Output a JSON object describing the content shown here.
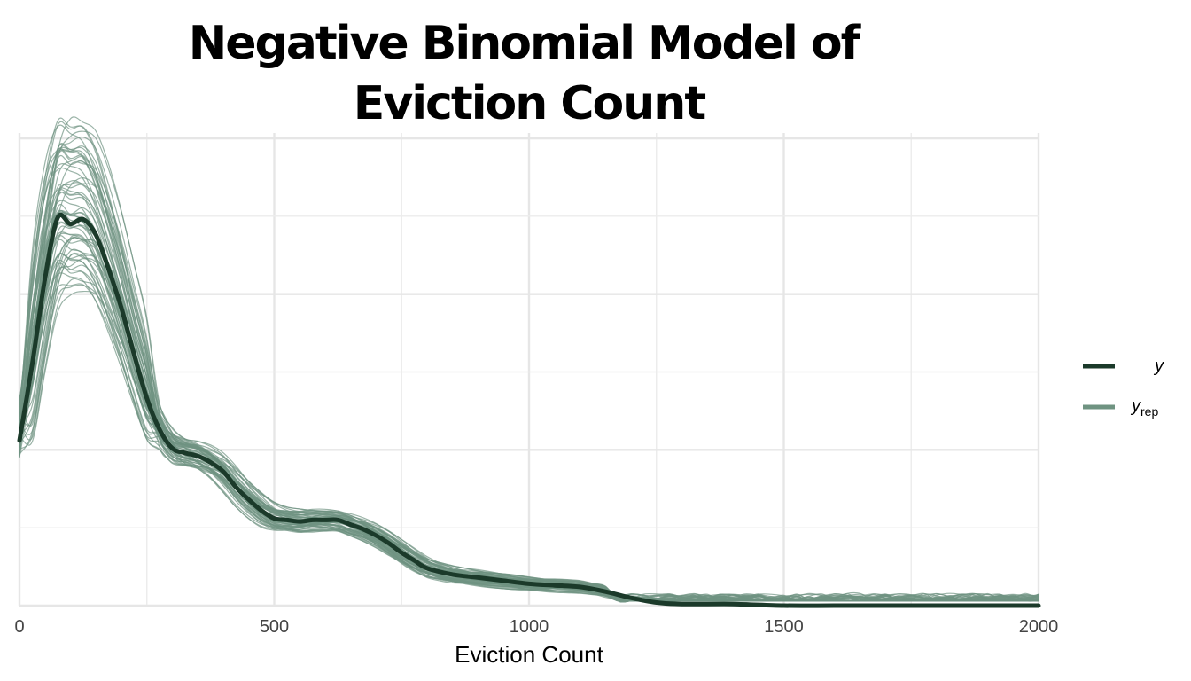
{
  "chart_data": {
    "type": "line",
    "title": "Negative Binomial Model of Eviction Count",
    "title_lines": [
      "Negative Binomial Model of",
      "Eviction Count"
    ],
    "xlabel": "Eviction Count",
    "ylabel": "",
    "xlim": [
      0,
      2000
    ],
    "ylim": [
      0,
      0.003
    ],
    "x_ticks": [
      0,
      500,
      1000,
      1500,
      2000
    ],
    "x_tick_labels": [
      "0",
      "500",
      "1000",
      "1500",
      "2000"
    ],
    "y_tick_labels_shown": false,
    "grid": true,
    "legend_position": "right",
    "colors": {
      "y": "#1b3a2a",
      "y_rep": "#6f9381"
    },
    "legend": [
      {
        "key": "y",
        "label": "y",
        "subscript": ""
      },
      {
        "key": "y_rep",
        "label": "y",
        "subscript": "rep"
      }
    ],
    "series": [
      {
        "key": "y",
        "x": [
          0,
          25,
          50,
          75,
          100,
          125,
          150,
          175,
          200,
          225,
          250,
          275,
          300,
          325,
          350,
          375,
          400,
          425,
          450,
          475,
          500,
          525,
          550,
          575,
          600,
          625,
          650,
          675,
          700,
          725,
          750,
          775,
          800,
          850,
          900,
          950,
          1000,
          1050,
          1100,
          1150,
          1200,
          1250,
          1300,
          1400,
          1500,
          1600,
          1700,
          1800,
          1900,
          2000
        ],
        "y": [
          0.00106,
          0.00155,
          0.0021,
          0.00249,
          0.00245,
          0.00248,
          0.00238,
          0.00216,
          0.00191,
          0.00161,
          0.00133,
          0.00113,
          0.00101,
          0.00098,
          0.00096,
          0.00092,
          0.00086,
          0.00076,
          0.00068,
          0.00061,
          0.00056,
          0.00055,
          0.00054,
          0.00055,
          0.00055,
          0.00055,
          0.00052,
          0.00049,
          0.00045,
          0.0004,
          0.00034,
          0.00029,
          0.00024,
          0.0002,
          0.00018,
          0.00016,
          0.00014,
          0.00013,
          0.00012,
          9e-05,
          5e-05,
          2e-05,
          1e-05,
          1e-05,
          0.0,
          0.0,
          0.0,
          0.0,
          0.0,
          0.0
        ]
      }
    ],
    "replicates": {
      "count": 60,
      "peak_x_range": [
        100,
        145
      ],
      "peak_y_range": [
        0.00209,
        0.00304
      ],
      "note_visible": false
    }
  }
}
